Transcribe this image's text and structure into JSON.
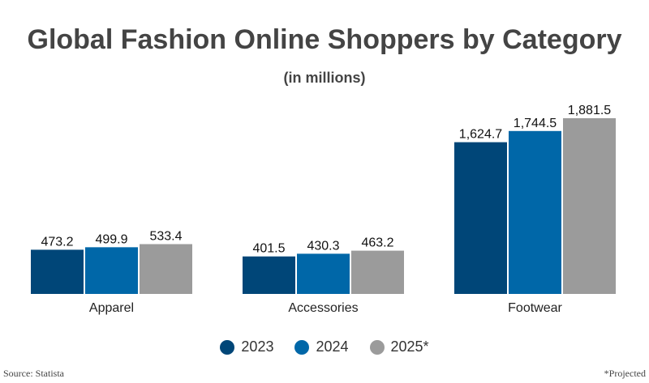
{
  "chart_data": {
    "type": "bar",
    "title": "Global Fashion Online Shoppers by Category",
    "subtitle": "(in millions)",
    "categories": [
      "Apparel",
      "Accessories",
      "Footwear"
    ],
    "series": [
      {
        "name": "2023",
        "values": [
          473.2,
          401.5,
          1624.7
        ],
        "labels": [
          "473.2",
          "401.5",
          "1,624.7"
        ],
        "color": "#004678"
      },
      {
        "name": "2024",
        "values": [
          499.9,
          430.3,
          1744.5
        ],
        "labels": [
          "499.9",
          "430.3",
          "1,744.5"
        ],
        "color": "#0067A8"
      },
      {
        "name": "2025*",
        "values": [
          533.4,
          463.2,
          1881.5
        ],
        "labels": [
          "533.4",
          "463.2",
          "1,881.5"
        ],
        "color": "#9B9B9B"
      }
    ],
    "ylim": [
      0,
      1881.5
    ],
    "grid": false,
    "legend_position": "bottom"
  },
  "source": "Source: Statista",
  "footnote": "*Projected"
}
